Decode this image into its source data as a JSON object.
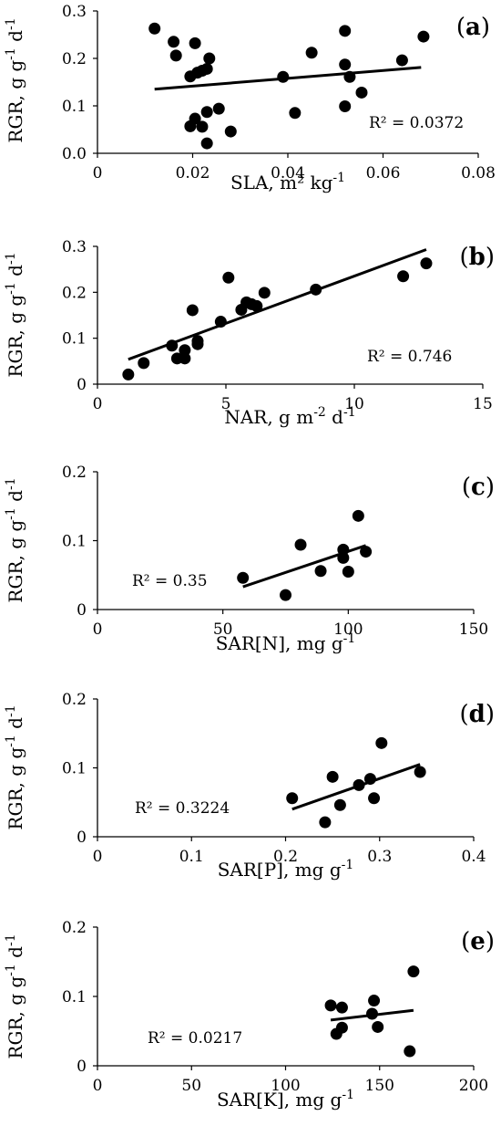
{
  "chart_data": [
    {
      "type": "scatter",
      "panel_label": "(a)",
      "xlabel": "SLA, m² kg-1",
      "ylabel": "RGR, g g-1 d-1",
      "xlim": [
        0,
        0.08
      ],
      "ylim": [
        0,
        0.3
      ],
      "xticks": [
        0,
        0.02,
        0.04,
        0.06,
        0.08
      ],
      "xtick_labels": [
        "0",
        "0.02",
        "0.04",
        "0.06",
        "0.08"
      ],
      "yticks": [
        0,
        0.1,
        0.2,
        0.3
      ],
      "ytick_labels": [
        "0.0",
        "0.1",
        "0.2",
        "0.3"
      ],
      "r2_label": "R² = 0.0372",
      "trendline": {
        "x": [
          0.012,
          0.068
        ],
        "y": [
          0.135,
          0.181
        ]
      },
      "points": [
        {
          "x": 0.012,
          "y": 0.263
        },
        {
          "x": 0.016,
          "y": 0.235
        },
        {
          "x": 0.0165,
          "y": 0.206
        },
        {
          "x": 0.0195,
          "y": 0.162
        },
        {
          "x": 0.0205,
          "y": 0.232
        },
        {
          "x": 0.021,
          "y": 0.17
        },
        {
          "x": 0.022,
          "y": 0.174
        },
        {
          "x": 0.023,
          "y": 0.178
        },
        {
          "x": 0.0235,
          "y": 0.2
        },
        {
          "x": 0.0195,
          "y": 0.057
        },
        {
          "x": 0.0205,
          "y": 0.073
        },
        {
          "x": 0.022,
          "y": 0.056
        },
        {
          "x": 0.023,
          "y": 0.087
        },
        {
          "x": 0.0255,
          "y": 0.094
        },
        {
          "x": 0.023,
          "y": 0.021
        },
        {
          "x": 0.028,
          "y": 0.046
        },
        {
          "x": 0.039,
          "y": 0.161
        },
        {
          "x": 0.0415,
          "y": 0.085
        },
        {
          "x": 0.045,
          "y": 0.212
        },
        {
          "x": 0.052,
          "y": 0.258
        },
        {
          "x": 0.052,
          "y": 0.187
        },
        {
          "x": 0.052,
          "y": 0.099
        },
        {
          "x": 0.053,
          "y": 0.161
        },
        {
          "x": 0.0555,
          "y": 0.128
        },
        {
          "x": 0.064,
          "y": 0.196
        },
        {
          "x": 0.0685,
          "y": 0.246
        }
      ]
    },
    {
      "type": "scatter",
      "panel_label": "(b)",
      "xlabel": "NAR, g m-2 d-1",
      "ylabel": "RGR, g g-1 d-1",
      "xlim": [
        0,
        15
      ],
      "ylim": [
        0,
        0.3
      ],
      "xticks": [
        0,
        5,
        10,
        15
      ],
      "xtick_labels": [
        "0",
        "5",
        "10",
        "15"
      ],
      "yticks": [
        0,
        0.1,
        0.2,
        0.3
      ],
      "ytick_labels": [
        "0",
        "0.1",
        "0.2",
        "0.3"
      ],
      "r2_label": "R² = 0.746",
      "trendline": {
        "x": [
          1.2,
          12.8
        ],
        "y": [
          0.054,
          0.293
        ]
      },
      "points": [
        {
          "x": 1.2,
          "y": 0.021
        },
        {
          "x": 1.8,
          "y": 0.046
        },
        {
          "x": 2.9,
          "y": 0.084
        },
        {
          "x": 3.1,
          "y": 0.056
        },
        {
          "x": 3.4,
          "y": 0.074
        },
        {
          "x": 3.4,
          "y": 0.056
        },
        {
          "x": 3.7,
          "y": 0.161
        },
        {
          "x": 3.9,
          "y": 0.087
        },
        {
          "x": 3.9,
          "y": 0.094
        },
        {
          "x": 4.8,
          "y": 0.136
        },
        {
          "x": 5.1,
          "y": 0.232
        },
        {
          "x": 5.6,
          "y": 0.162
        },
        {
          "x": 5.8,
          "y": 0.178
        },
        {
          "x": 6.0,
          "y": 0.174
        },
        {
          "x": 6.2,
          "y": 0.17
        },
        {
          "x": 6.5,
          "y": 0.199
        },
        {
          "x": 8.5,
          "y": 0.206
        },
        {
          "x": 11.9,
          "y": 0.235
        },
        {
          "x": 12.8,
          "y": 0.263
        }
      ]
    },
    {
      "type": "scatter",
      "panel_label": "(c)",
      "xlabel": "SAR[N], mg g-1",
      "ylabel": "RGR, g g-1 d-1",
      "xlim": [
        0,
        150
      ],
      "ylim": [
        0,
        0.2
      ],
      "xticks": [
        0,
        50,
        100,
        150
      ],
      "xtick_labels": [
        "0",
        "50",
        "100",
        "150"
      ],
      "yticks": [
        0,
        0.1,
        0.2
      ],
      "ytick_labels": [
        "0",
        "0.1",
        "0.2"
      ],
      "r2_label": "R² = 0.35",
      "trendline": {
        "x": [
          58,
          107
        ],
        "y": [
          0.033,
          0.093
        ]
      },
      "points": [
        {
          "x": 58,
          "y": 0.046
        },
        {
          "x": 75,
          "y": 0.021
        },
        {
          "x": 81,
          "y": 0.094
        },
        {
          "x": 89,
          "y": 0.056
        },
        {
          "x": 98,
          "y": 0.087
        },
        {
          "x": 98,
          "y": 0.075
        },
        {
          "x": 100,
          "y": 0.055
        },
        {
          "x": 104,
          "y": 0.136
        },
        {
          "x": 107,
          "y": 0.084
        }
      ]
    },
    {
      "type": "scatter",
      "panel_label": "(d)",
      "xlabel": "SAR[P], mg g-1",
      "ylabel": "RGR, g g-1 d-1",
      "xlim": [
        0,
        0.4
      ],
      "ylim": [
        0,
        0.2
      ],
      "xticks": [
        0,
        0.1,
        0.2,
        0.3,
        0.4
      ],
      "xtick_labels": [
        "0",
        "0.1",
        "0.2",
        "0.3",
        "0.4"
      ],
      "yticks": [
        0,
        0.1,
        0.2
      ],
      "ytick_labels": [
        "0",
        "0.1",
        "0.2"
      ],
      "r2_label": "R² = 0.3224",
      "trendline": {
        "x": [
          0.207,
          0.343
        ],
        "y": [
          0.04,
          0.105
        ]
      },
      "points": [
        {
          "x": 0.207,
          "y": 0.056
        },
        {
          "x": 0.242,
          "y": 0.021
        },
        {
          "x": 0.25,
          "y": 0.087
        },
        {
          "x": 0.258,
          "y": 0.046
        },
        {
          "x": 0.278,
          "y": 0.075
        },
        {
          "x": 0.29,
          "y": 0.084
        },
        {
          "x": 0.294,
          "y": 0.056
        },
        {
          "x": 0.302,
          "y": 0.136
        },
        {
          "x": 0.343,
          "y": 0.094
        }
      ]
    },
    {
      "type": "scatter",
      "panel_label": "(e)",
      "xlabel": "SAR[K], mg g-1",
      "ylabel": "RGR, g g-1 d-1",
      "xlim": [
        0,
        200
      ],
      "ylim": [
        0,
        0.2
      ],
      "xticks": [
        0,
        50,
        100,
        150,
        200
      ],
      "xtick_labels": [
        "0",
        "50",
        "100",
        "150",
        "200"
      ],
      "yticks": [
        0,
        0.1,
        0.2
      ],
      "ytick_labels": [
        "0",
        "0.1",
        "0.2"
      ],
      "r2_label": "R² = 0.0217",
      "trendline": {
        "x": [
          124,
          168
        ],
        "y": [
          0.066,
          0.08
        ]
      },
      "points": [
        {
          "x": 124,
          "y": 0.087
        },
        {
          "x": 127,
          "y": 0.046
        },
        {
          "x": 130,
          "y": 0.084
        },
        {
          "x": 130,
          "y": 0.055
        },
        {
          "x": 146,
          "y": 0.075
        },
        {
          "x": 147,
          "y": 0.094
        },
        {
          "x": 149,
          "y": 0.056
        },
        {
          "x": 166,
          "y": 0.021
        },
        {
          "x": 168,
          "y": 0.136
        }
      ]
    }
  ]
}
